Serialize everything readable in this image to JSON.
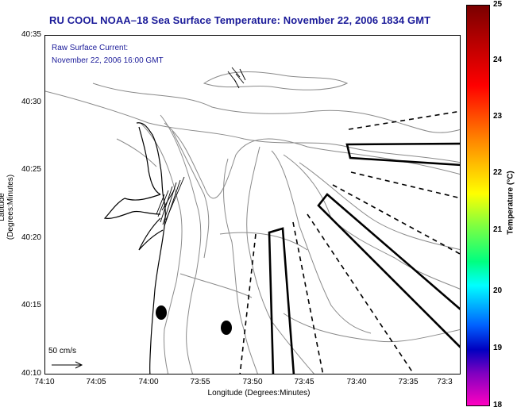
{
  "title": "RU COOL  NOAA–18  Sea Surface Temperature:  November 22, 2006 1834 GMT",
  "overlay": {
    "current_label": "Raw Surface Current:",
    "current_time": "November 22, 2006 16:00 GMT",
    "scale_label": "50 cm/s"
  },
  "axes": {
    "xlabel": "Longitude (Degrees:Minutes)",
    "ylabel": "Latitude (Degrees:Minutes)",
    "xticks": [
      "74:10",
      "74:05",
      "74:00",
      "73:55",
      "73:50",
      "73:45",
      "73:40",
      "73:35",
      "73:3"
    ],
    "yticks": [
      "40:35",
      "40:30",
      "40:25",
      "40:20",
      "40:15",
      "40:10"
    ]
  },
  "colorbar": {
    "label": "Temperature (°C)",
    "ticks": [
      "25",
      "24",
      "23",
      "22",
      "21",
      "20",
      "19",
      "18"
    ],
    "range": [
      18,
      25
    ]
  },
  "colors": {
    "title": "#1a1a99",
    "coast": "#000000",
    "bathymetry": "#808080"
  }
}
